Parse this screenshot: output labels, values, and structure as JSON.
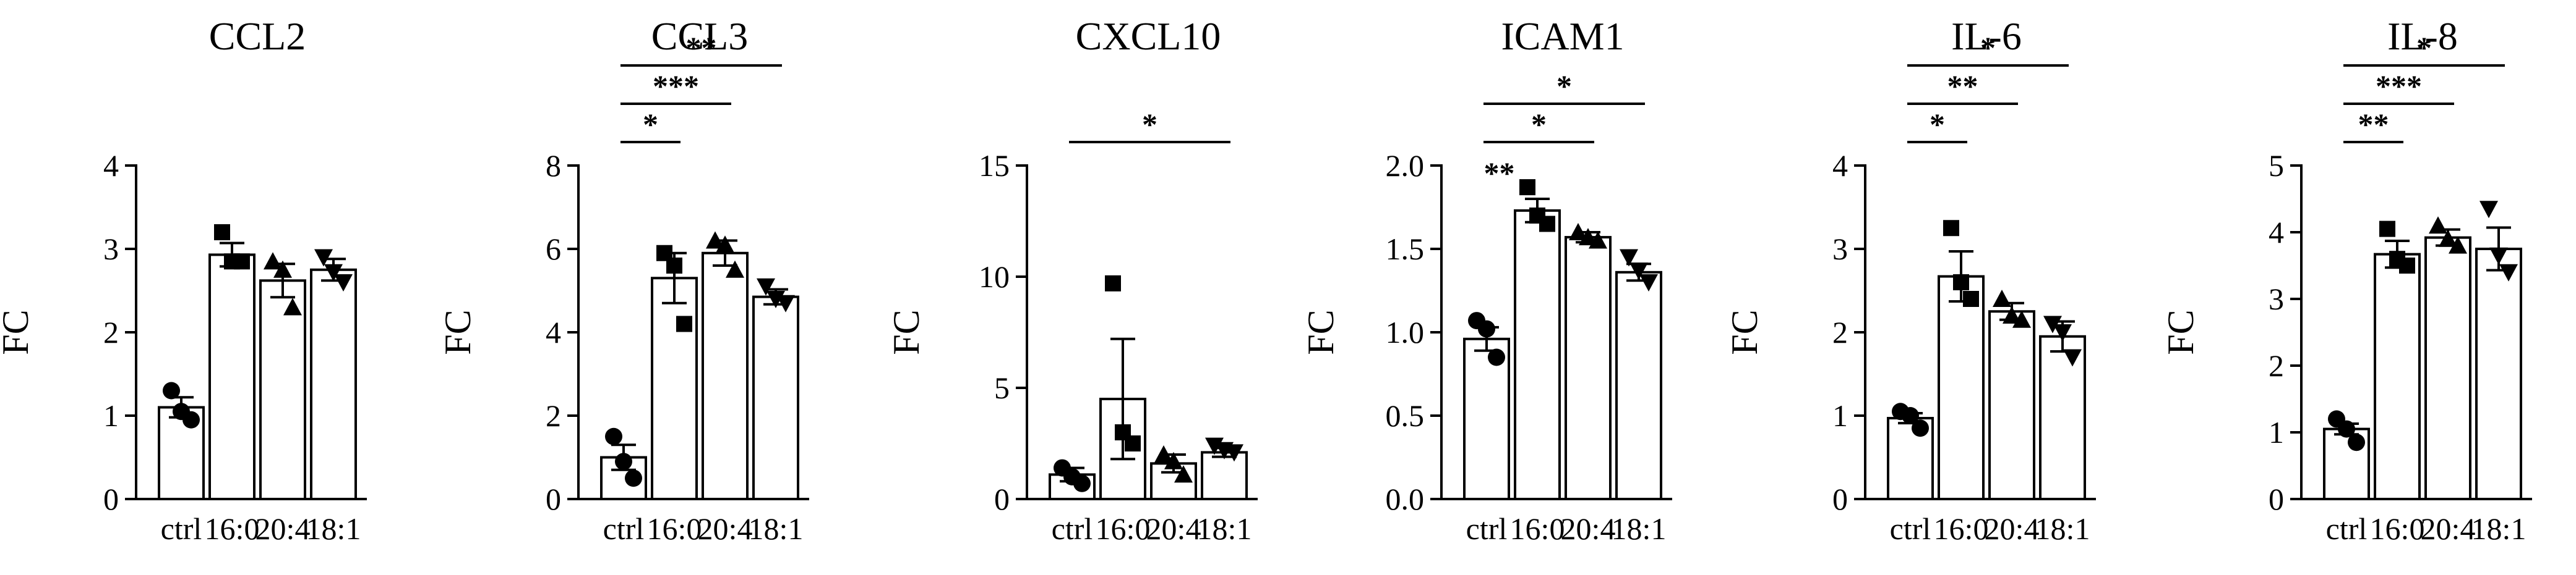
{
  "chart_data": [
    {
      "type": "bar",
      "title": "CCL2",
      "ylabel": "FC",
      "categories": [
        "ctrl",
        "16:0",
        "20:4",
        "18:1"
      ],
      "values": [
        1.1,
        2.93,
        2.62,
        2.75
      ],
      "errors": [
        0.12,
        0.14,
        0.2,
        0.13
      ],
      "points": [
        [
          1.3,
          1.05,
          0.95
        ],
        [
          3.2,
          2.85,
          2.85
        ],
        [
          2.85,
          2.75,
          2.3
        ],
        [
          2.9,
          2.72,
          2.6
        ]
      ],
      "ylim": [
        0,
        4
      ],
      "yticks": [
        "0",
        "1",
        "2",
        "3",
        "4"
      ],
      "significance": []
    },
    {
      "type": "bar",
      "title": "CCL3",
      "ylabel": "FC",
      "categories": [
        "ctrl",
        "16:0",
        "20:4",
        "18:1"
      ],
      "values": [
        1.0,
        5.3,
        5.9,
        4.85
      ],
      "errors": [
        0.3,
        0.6,
        0.3,
        0.18
      ],
      "points": [
        [
          1.5,
          0.9,
          0.5
        ],
        [
          5.9,
          5.6,
          4.2
        ],
        [
          6.2,
          6.1,
          5.5
        ],
        [
          5.1,
          4.8,
          4.7
        ]
      ],
      "ylim": [
        0,
        8
      ],
      "yticks": [
        "0",
        "2",
        "4",
        "6",
        "8"
      ],
      "significance": [
        {
          "from": 0,
          "to": 1,
          "label": "*"
        },
        {
          "from": 0,
          "to": 2,
          "label": "***"
        },
        {
          "from": 0,
          "to": 3,
          "label": "**"
        }
      ]
    },
    {
      "type": "bar",
      "title": "CXCL10",
      "ylabel": "FC",
      "categories": [
        "ctrl",
        "16:0",
        "20:4",
        "18:1"
      ],
      "values": [
        1.1,
        4.5,
        1.6,
        2.1
      ],
      "errors": [
        0.3,
        2.7,
        0.4,
        0.2
      ],
      "points": [
        [
          1.4,
          1.0,
          0.7
        ],
        [
          9.7,
          3.0,
          2.5
        ],
        [
          2.0,
          1.7,
          1.1
        ],
        [
          2.4,
          2.2,
          2.1
        ]
      ],
      "ylim": [
        0,
        15
      ],
      "yticks": [
        "0",
        "5",
        "10",
        "15"
      ],
      "significance": [
        {
          "from": 0,
          "to": 3,
          "label": "*"
        }
      ]
    },
    {
      "type": "bar",
      "title": "ICAM1",
      "ylabel": "FC",
      "categories": [
        "ctrl",
        "16:0",
        "20:4",
        "18:1"
      ],
      "values": [
        0.96,
        1.73,
        1.57,
        1.36
      ],
      "errors": [
        0.07,
        0.07,
        0.03,
        0.05
      ],
      "points": [
        [
          1.07,
          1.02,
          0.85
        ],
        [
          1.87,
          1.7,
          1.65
        ],
        [
          1.6,
          1.57,
          1.55
        ],
        [
          1.45,
          1.37,
          1.3
        ]
      ],
      "ylim": [
        0,
        2.0
      ],
      "yticks": [
        "0.0",
        "0.5",
        "1.0",
        "1.5",
        "2.0"
      ],
      "significance": [
        {
          "from": 0,
          "to": 1,
          "label": "**",
          "inline": true
        },
        {
          "from": 0,
          "to": 2,
          "label": "*"
        },
        {
          "from": 0,
          "to": 3,
          "label": "*"
        }
      ]
    },
    {
      "type": "bar",
      "title": "IL-6",
      "ylabel": "FC",
      "categories": [
        "ctrl",
        "16:0",
        "20:4",
        "18:1"
      ],
      "values": [
        0.97,
        2.67,
        2.25,
        1.95
      ],
      "errors": [
        0.06,
        0.3,
        0.1,
        0.18
      ],
      "points": [
        [
          1.05,
          1.0,
          0.85
        ],
        [
          3.25,
          2.6,
          2.4
        ],
        [
          2.4,
          2.2,
          2.15
        ],
        [
          2.1,
          2.0,
          1.7
        ]
      ],
      "ylim": [
        0,
        4
      ],
      "yticks": [
        "0",
        "1",
        "2",
        "3",
        "4"
      ],
      "significance": [
        {
          "from": 0,
          "to": 1,
          "label": "*"
        },
        {
          "from": 0,
          "to": 2,
          "label": "**"
        },
        {
          "from": 0,
          "to": 3,
          "label": "*"
        }
      ]
    },
    {
      "type": "bar",
      "title": "IL-8",
      "ylabel": "FC",
      "categories": [
        "ctrl",
        "16:0",
        "20:4",
        "18:1"
      ],
      "values": [
        1.05,
        3.67,
        3.92,
        3.75
      ],
      "errors": [
        0.08,
        0.2,
        0.12,
        0.32
      ],
      "points": [
        [
          1.2,
          1.05,
          0.85
        ],
        [
          4.05,
          3.6,
          3.5
        ],
        [
          4.1,
          3.9,
          3.8
        ],
        [
          4.35,
          3.65,
          3.4
        ]
      ],
      "ylim": [
        0,
        5
      ],
      "yticks": [
        "0",
        "1",
        "2",
        "3",
        "4",
        "5"
      ],
      "significance": [
        {
          "from": 0,
          "to": 1,
          "label": "**"
        },
        {
          "from": 0,
          "to": 2,
          "label": "***"
        },
        {
          "from": 0,
          "to": 3,
          "label": "*"
        }
      ]
    }
  ]
}
